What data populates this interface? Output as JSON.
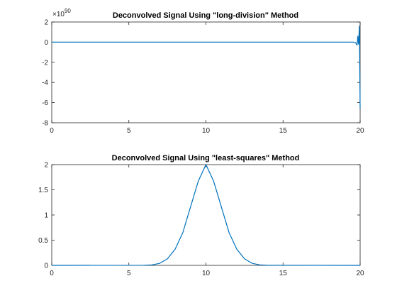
{
  "chart_data": [
    {
      "type": "line",
      "title": "Deconvolved Signal Using \"long-division\" Method",
      "xlabel": "",
      "ylabel": "",
      "xlim": [
        0,
        20
      ],
      "ylim": [
        -8,
        2
      ],
      "y_multiplier": "×10",
      "y_multiplier_exponent": "90",
      "xticks": [
        0,
        5,
        10,
        15,
        20
      ],
      "yticks": [
        2,
        0,
        -2,
        -4,
        -6,
        -8
      ],
      "grid": false,
      "color": "#0072BD",
      "series": [
        {
          "x": [
            0,
            19.4,
            19.6,
            19.7,
            19.8,
            19.85,
            19.9,
            19.95,
            20.0
          ],
          "y": [
            0,
            0,
            0,
            -0.05,
            -0.3,
            0.6,
            -0.2,
            1.6,
            -6.6
          ]
        }
      ]
    },
    {
      "type": "line",
      "title": "Deconvolved Signal Using \"least-squares\" Method",
      "xlabel": "",
      "ylabel": "",
      "xlim": [
        0,
        20
      ],
      "ylim": [
        0,
        2
      ],
      "xticks": [
        0,
        5,
        10,
        15,
        20
      ],
      "yticks": [
        2,
        1.5,
        1,
        0.5,
        0
      ],
      "grid": false,
      "color": "#0072BD",
      "series": [
        {
          "x": [
            0,
            6,
            6.5,
            7,
            7.5,
            8,
            8.5,
            9,
            9.5,
            10,
            10.5,
            11,
            11.5,
            12,
            12.5,
            13,
            13.5,
            14,
            20
          ],
          "y": [
            0,
            0.003,
            0.01,
            0.04,
            0.13,
            0.32,
            0.65,
            1.16,
            1.67,
            2.0,
            1.67,
            1.16,
            0.65,
            0.32,
            0.13,
            0.04,
            0.01,
            0.003,
            0
          ]
        }
      ]
    }
  ]
}
